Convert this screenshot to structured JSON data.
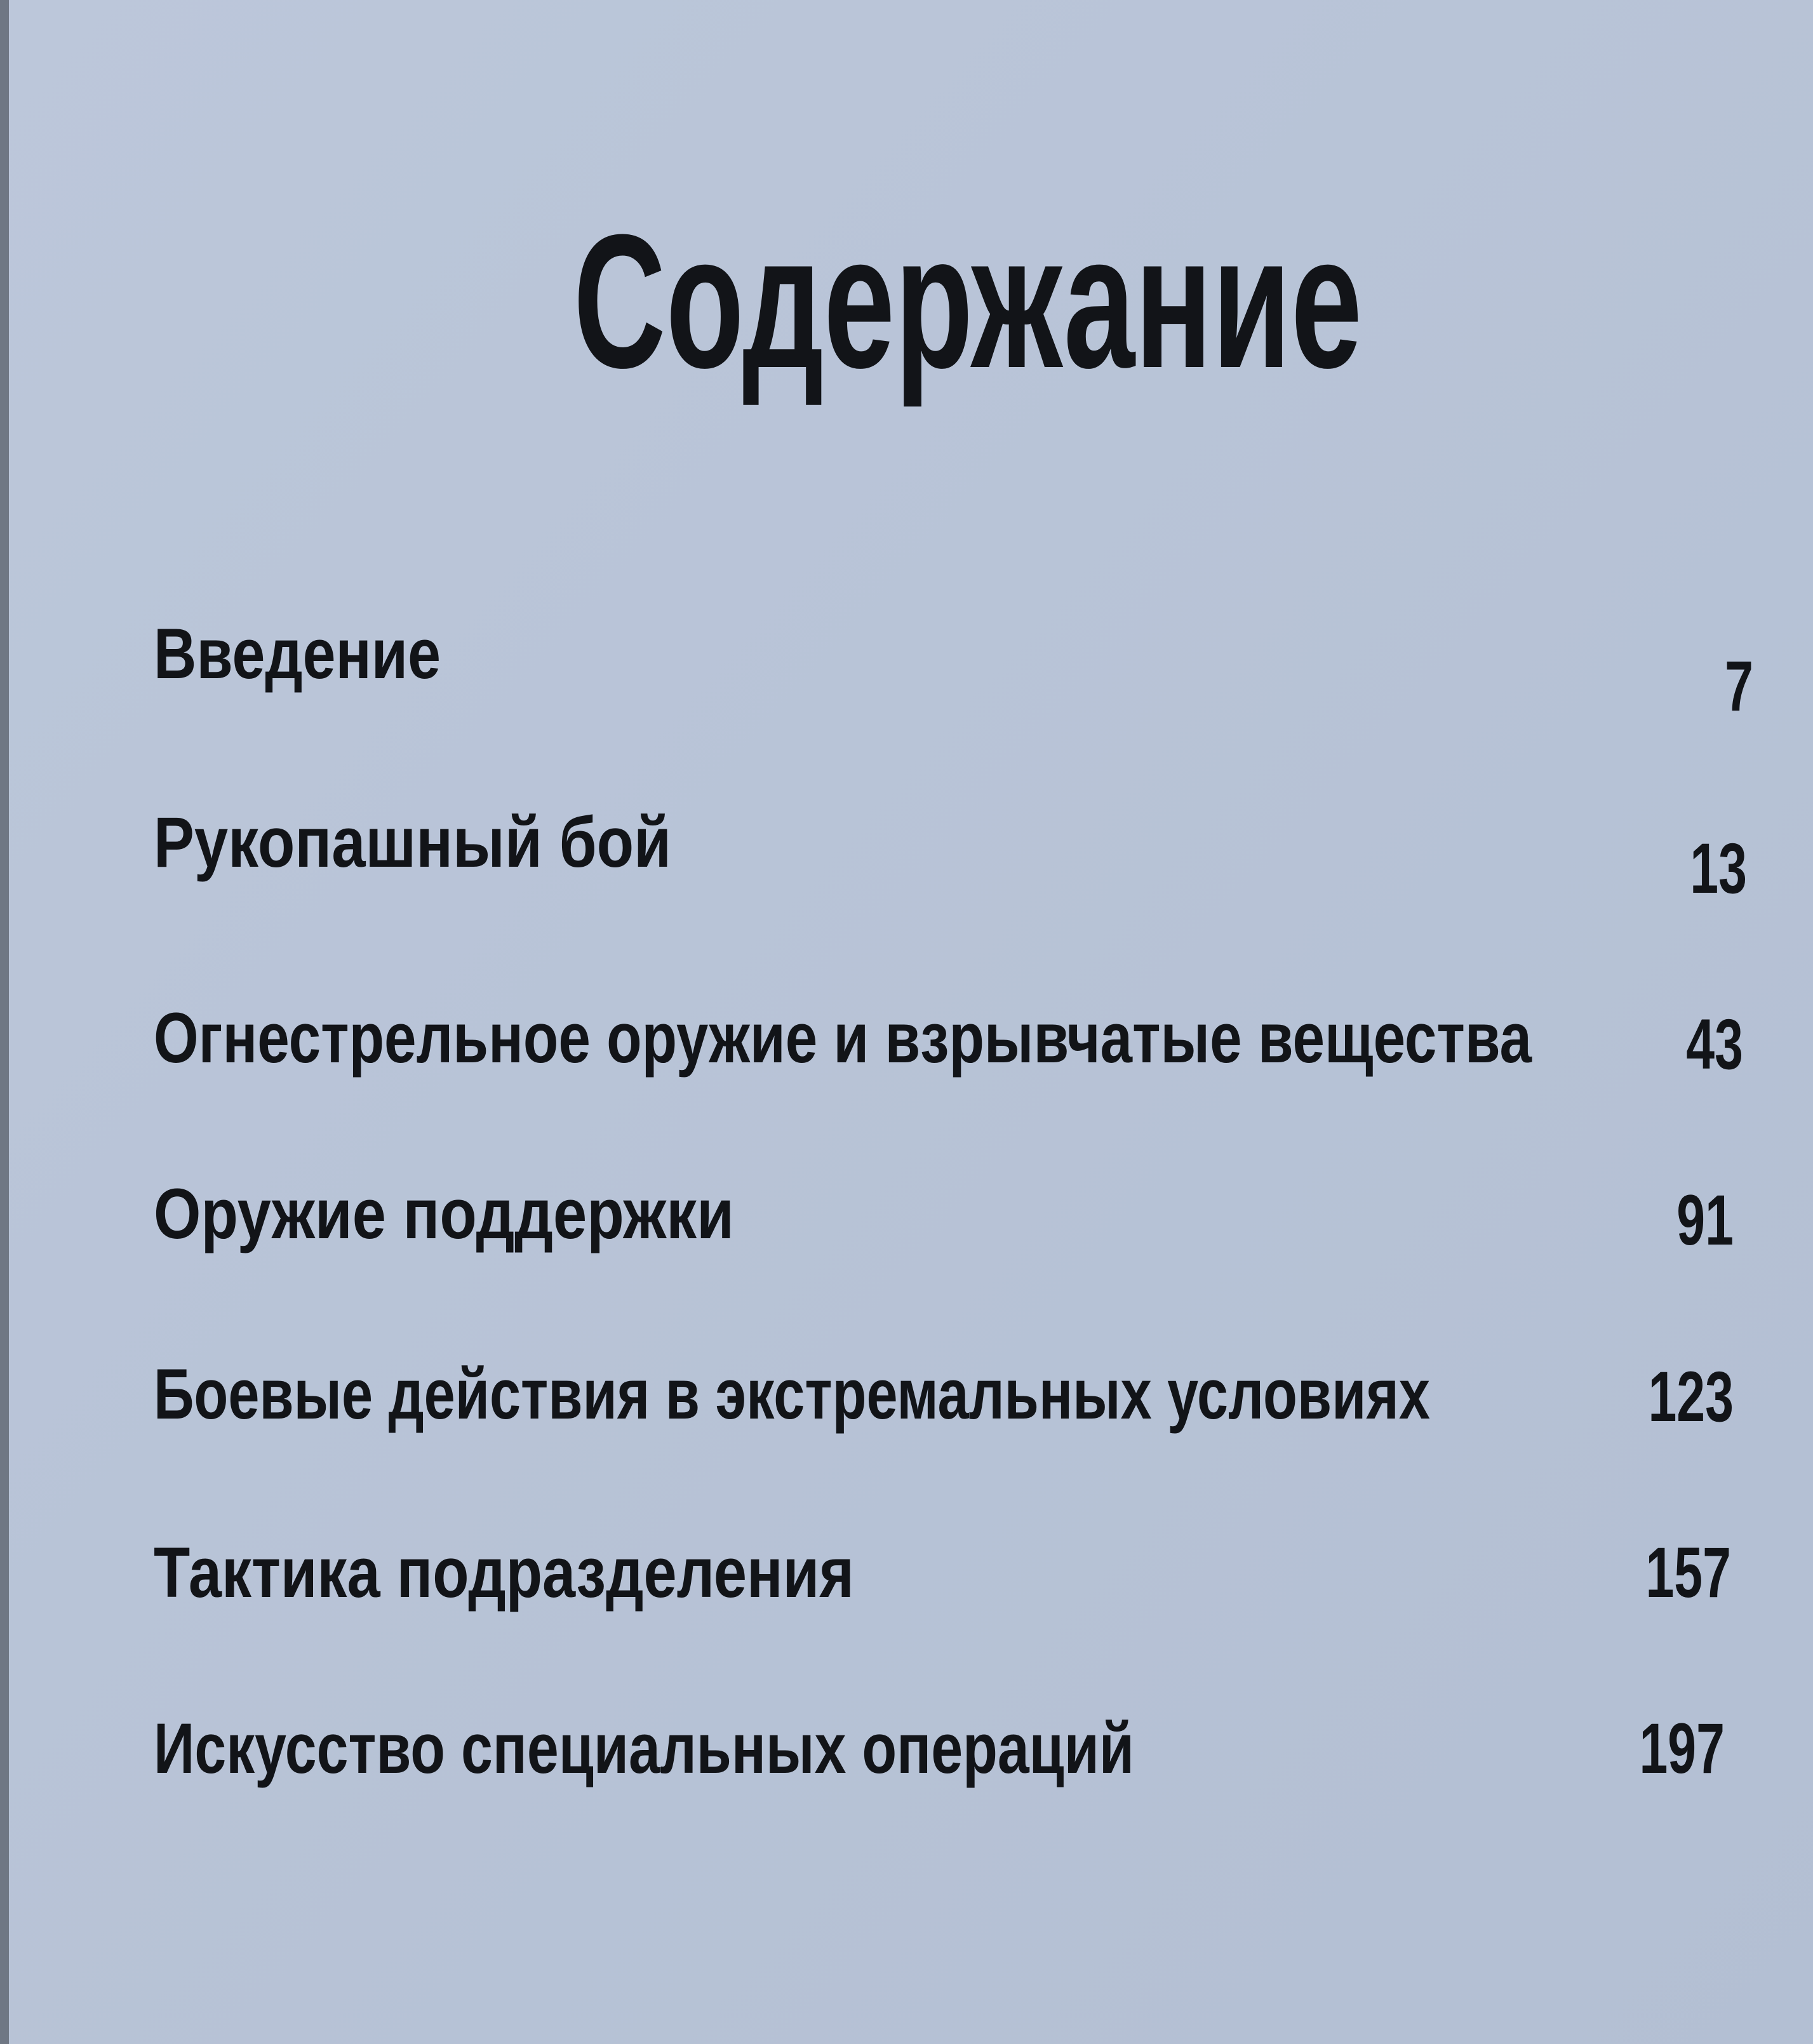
{
  "title": "Содержание",
  "entries": [
    {
      "label": "Введение",
      "page": 7
    },
    {
      "label": "Рукопашный бой",
      "page": 13
    },
    {
      "label": "Огнестрельное оружие и взрывчатые вещества",
      "page": 43
    },
    {
      "label": "Оружие поддержки",
      "page": 91
    },
    {
      "label": "Боевые действия в экстремальных условиях",
      "page": 123
    },
    {
      "label": "Тактика подразделения",
      "page": 157
    },
    {
      "label": "Искусство специальных операций",
      "page": 197
    }
  ]
}
